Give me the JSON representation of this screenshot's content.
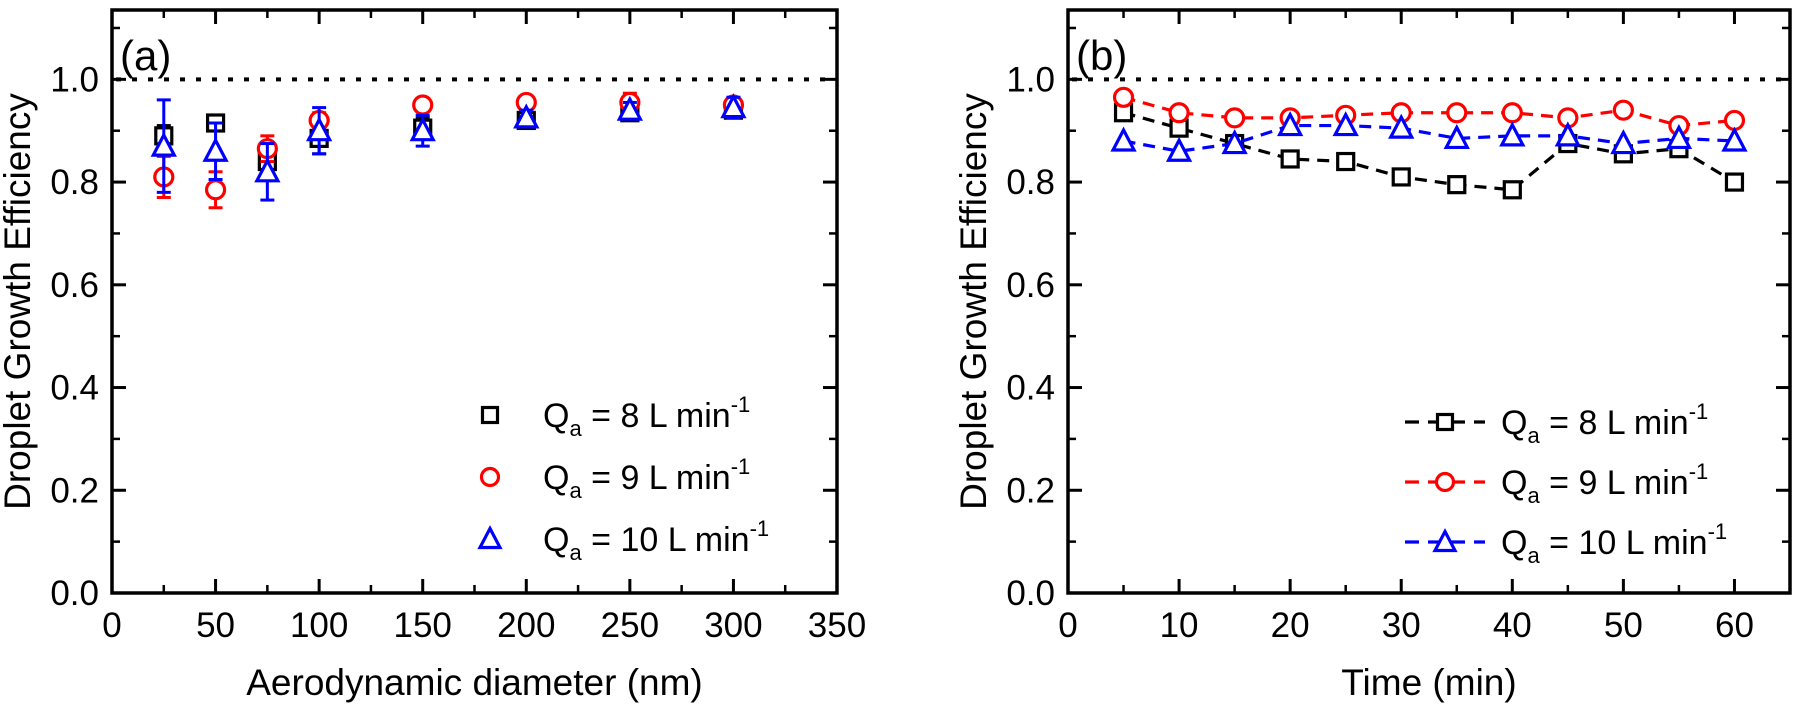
{
  "figure": {
    "background": "#ffffff",
    "axis_color": "#000000"
  },
  "chart_data": [
    {
      "type": "scatter",
      "panel_label": "(a)",
      "xlabel": "Aerodynamic diameter (nm)",
      "ylabel": "Droplet Growth Efficiency",
      "xlim": [
        0,
        350
      ],
      "ylim": [
        0.0,
        1.135
      ],
      "x_major_ticks": [
        0,
        50,
        100,
        150,
        200,
        250,
        300,
        350
      ],
      "x_minor_step": 25,
      "y_major_ticks": [
        0.0,
        0.2,
        0.4,
        0.6,
        0.8,
        1.0
      ],
      "y_minor_step": 0.1,
      "grid": false,
      "ref_line": {
        "y": 1.0,
        "style": "dotted",
        "color": "#000000"
      },
      "x": [
        25,
        50,
        75,
        100,
        150,
        200,
        250,
        300
      ],
      "series": [
        {
          "name": "Qa = 8 L min-1",
          "label_parts": [
            {
              "t": "Q"
            },
            {
              "t": "a",
              "style": "sub"
            },
            {
              "t": " = 8 L min"
            },
            {
              "t": "-1",
              "style": "sup"
            }
          ],
          "marker": "square",
          "color": "#000000",
          "line": false,
          "values": [
            0.89,
            0.915,
            0.84,
            0.885,
            0.905,
            0.92,
            0.935,
            0.94
          ],
          "err": [
            0.02,
            0.01,
            0.02,
            0.03,
            0.02,
            0.01,
            0.01,
            0.01
          ]
        },
        {
          "name": "Qa = 9 L min-1",
          "label_parts": [
            {
              "t": "Q"
            },
            {
              "t": "a",
              "style": "sub"
            },
            {
              "t": " = 9 L min"
            },
            {
              "t": "-1",
              "style": "sup"
            }
          ],
          "marker": "circle",
          "color": "#ff0000",
          "line": false,
          "values": [
            0.81,
            0.785,
            0.865,
            0.92,
            0.95,
            0.955,
            0.955,
            0.95
          ],
          "err": [
            0.04,
            0.035,
            0.025,
            0.015,
            0.012,
            0.012,
            0.018,
            0.015
          ]
        },
        {
          "name": "Qa = 10 L min-1",
          "label_parts": [
            {
              "t": "Q"
            },
            {
              "t": "a",
              "style": "sub"
            },
            {
              "t": " = 10 L min"
            },
            {
              "t": "-1",
              "style": "sup"
            }
          ],
          "marker": "triangle",
          "color": "#0000ff",
          "line": false,
          "values": [
            0.87,
            0.86,
            0.82,
            0.9,
            0.9,
            0.925,
            0.94,
            0.945
          ],
          "err": [
            0.09,
            0.055,
            0.055,
            0.045,
            0.03,
            0.015,
            0.015,
            0.02
          ]
        }
      ],
      "legend_position": "lower right"
    },
    {
      "type": "scatter",
      "panel_label": "(b)",
      "xlabel": "Time (min)",
      "ylabel": "Droplet Growth Efficiency",
      "xlim": [
        0,
        65
      ],
      "ylim": [
        0.0,
        1.135
      ],
      "x_major_ticks": [
        0,
        10,
        20,
        30,
        40,
        50,
        60
      ],
      "x_minor_step": 5,
      "y_major_ticks": [
        0.0,
        0.2,
        0.4,
        0.6,
        0.8,
        1.0
      ],
      "y_minor_step": 0.1,
      "grid": false,
      "ref_line": {
        "y": 1.0,
        "style": "dotted",
        "color": "#000000"
      },
      "x": [
        5,
        10,
        15,
        20,
        25,
        30,
        35,
        40,
        45,
        50,
        55,
        60
      ],
      "series": [
        {
          "name": "Qa = 8 L min-1",
          "label_parts": [
            {
              "t": "Q"
            },
            {
              "t": "a",
              "style": "sub"
            },
            {
              "t": " = 8 L min"
            },
            {
              "t": "-1",
              "style": "sup"
            }
          ],
          "marker": "square",
          "color": "#000000",
          "line": true,
          "values": [
            0.935,
            0.905,
            0.875,
            0.845,
            0.84,
            0.81,
            0.795,
            0.785,
            0.875,
            0.855,
            0.865,
            0.8
          ],
          "err": []
        },
        {
          "name": "Qa = 9 L min-1",
          "label_parts": [
            {
              "t": "Q"
            },
            {
              "t": "a",
              "style": "sub"
            },
            {
              "t": " = 9 L min"
            },
            {
              "t": "-1",
              "style": "sup"
            }
          ],
          "marker": "circle",
          "color": "#ff0000",
          "line": true,
          "values": [
            0.965,
            0.935,
            0.925,
            0.925,
            0.93,
            0.935,
            0.935,
            0.935,
            0.925,
            0.94,
            0.91,
            0.92
          ],
          "err": []
        },
        {
          "name": "Qa = 10 L min-1",
          "label_parts": [
            {
              "t": "Q"
            },
            {
              "t": "a",
              "style": "sub"
            },
            {
              "t": " = 10 L min"
            },
            {
              "t": "-1",
              "style": "sup"
            }
          ],
          "marker": "triangle",
          "color": "#0000ff",
          "line": true,
          "values": [
            0.88,
            0.86,
            0.875,
            0.91,
            0.91,
            0.905,
            0.885,
            0.89,
            0.89,
            0.875,
            0.885,
            0.88
          ],
          "err": []
        }
      ],
      "legend_position": "lower right"
    }
  ]
}
